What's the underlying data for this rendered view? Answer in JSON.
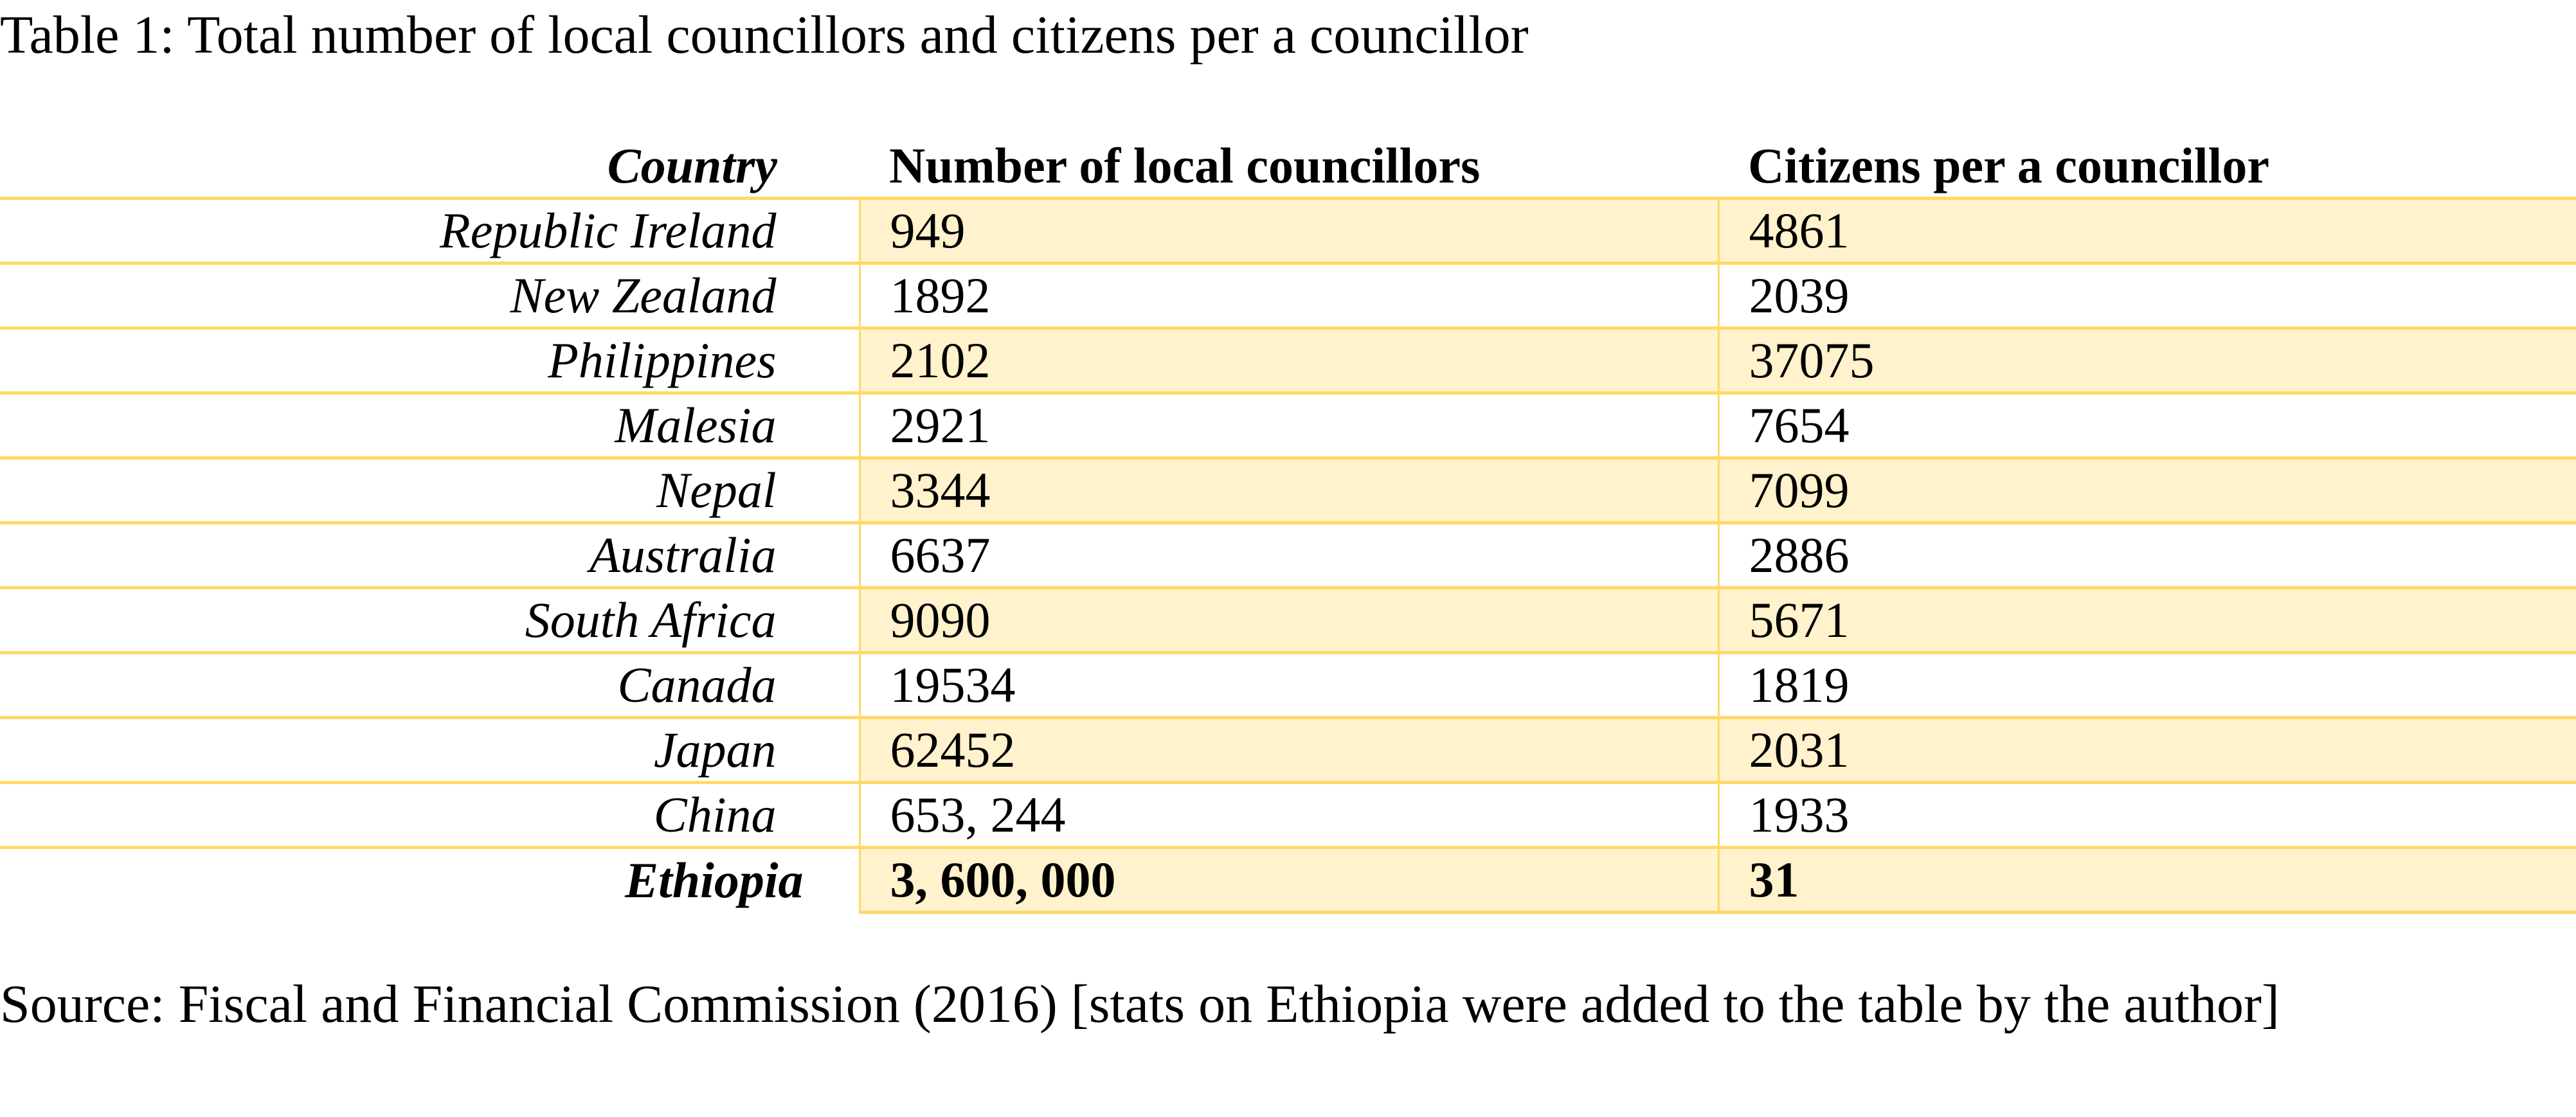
{
  "title": "Table 1: Total number of local councillors and citizens per a councillor",
  "table": {
    "headers": [
      "Country",
      "Number of local councillors",
      "Citizens per a councillor"
    ],
    "rows": [
      [
        "Republic Ireland",
        "949",
        "4861"
      ],
      [
        "New Zealand",
        "1892",
        "2039"
      ],
      [
        "Philippines",
        "2102",
        "37075"
      ],
      [
        "Malesia",
        "2921",
        "7654"
      ],
      [
        "Nepal",
        "3344",
        "7099"
      ],
      [
        "Australia",
        "6637",
        "2886"
      ],
      [
        "South Africa",
        "9090",
        "5671"
      ],
      [
        "Canada",
        "19534",
        "1819"
      ],
      [
        "Japan",
        "62452",
        "2031"
      ],
      [
        "China",
        "653, 244",
        "1933"
      ],
      [
        "Ethiopia",
        "3, 600, 000",
        "31"
      ]
    ]
  },
  "source": "Source: Fiscal and Financial Commission (2016) [stats on Ethiopia were added to the table by the author]",
  "colors": {
    "border": "#FFD966",
    "band_fill": "#FFF2CC"
  }
}
